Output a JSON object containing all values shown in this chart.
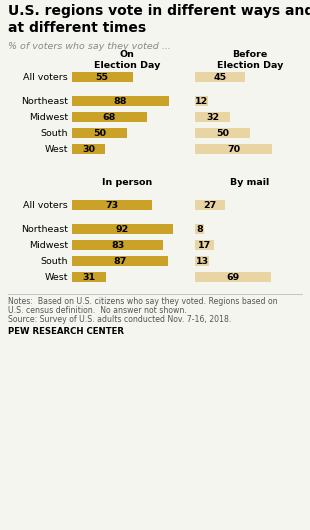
{
  "title": "U.S. regions vote in different ways and\nat different times",
  "subtitle": "% of voters who say they voted ...",
  "dark_gold": "#C9A227",
  "light_gold": "#E8D5A3",
  "background": "#F5F5F0",
  "section1": {
    "col1_header": "On\nElection Day",
    "col2_header": "Before\nElection Day",
    "rows": [
      {
        "label": "All voters",
        "v1": 55,
        "v2": 45,
        "allvoters": true
      },
      {
        "label": "Northeast",
        "v1": 88,
        "v2": 12,
        "allvoters": false
      },
      {
        "label": "Midwest",
        "v1": 68,
        "v2": 32,
        "allvoters": false
      },
      {
        "label": "South",
        "v1": 50,
        "v2": 50,
        "allvoters": false
      },
      {
        "label": "West",
        "v1": 30,
        "v2": 70,
        "allvoters": false
      }
    ]
  },
  "section2": {
    "col1_header": "In person",
    "col2_header": "By mail",
    "rows": [
      {
        "label": "All voters",
        "v1": 73,
        "v2": 27,
        "allvoters": true
      },
      {
        "label": "Northeast",
        "v1": 92,
        "v2": 8,
        "allvoters": false
      },
      {
        "label": "Midwest",
        "v1": 83,
        "v2": 17,
        "allvoters": false
      },
      {
        "label": "South",
        "v1": 87,
        "v2": 13,
        "allvoters": false
      },
      {
        "label": "West",
        "v1": 31,
        "v2": 69,
        "allvoters": false
      }
    ]
  },
  "notes_line1": "Notes:  Based on U.S. citizens who say they voted. Regions based on",
  "notes_line2": "U.S. census definition.  No answer not shown.",
  "notes_line3": "Source: Survey of U.S. adults conducted Nov. 7-16, 2018.",
  "source_bold": "PEW RESEARCH CENTER"
}
